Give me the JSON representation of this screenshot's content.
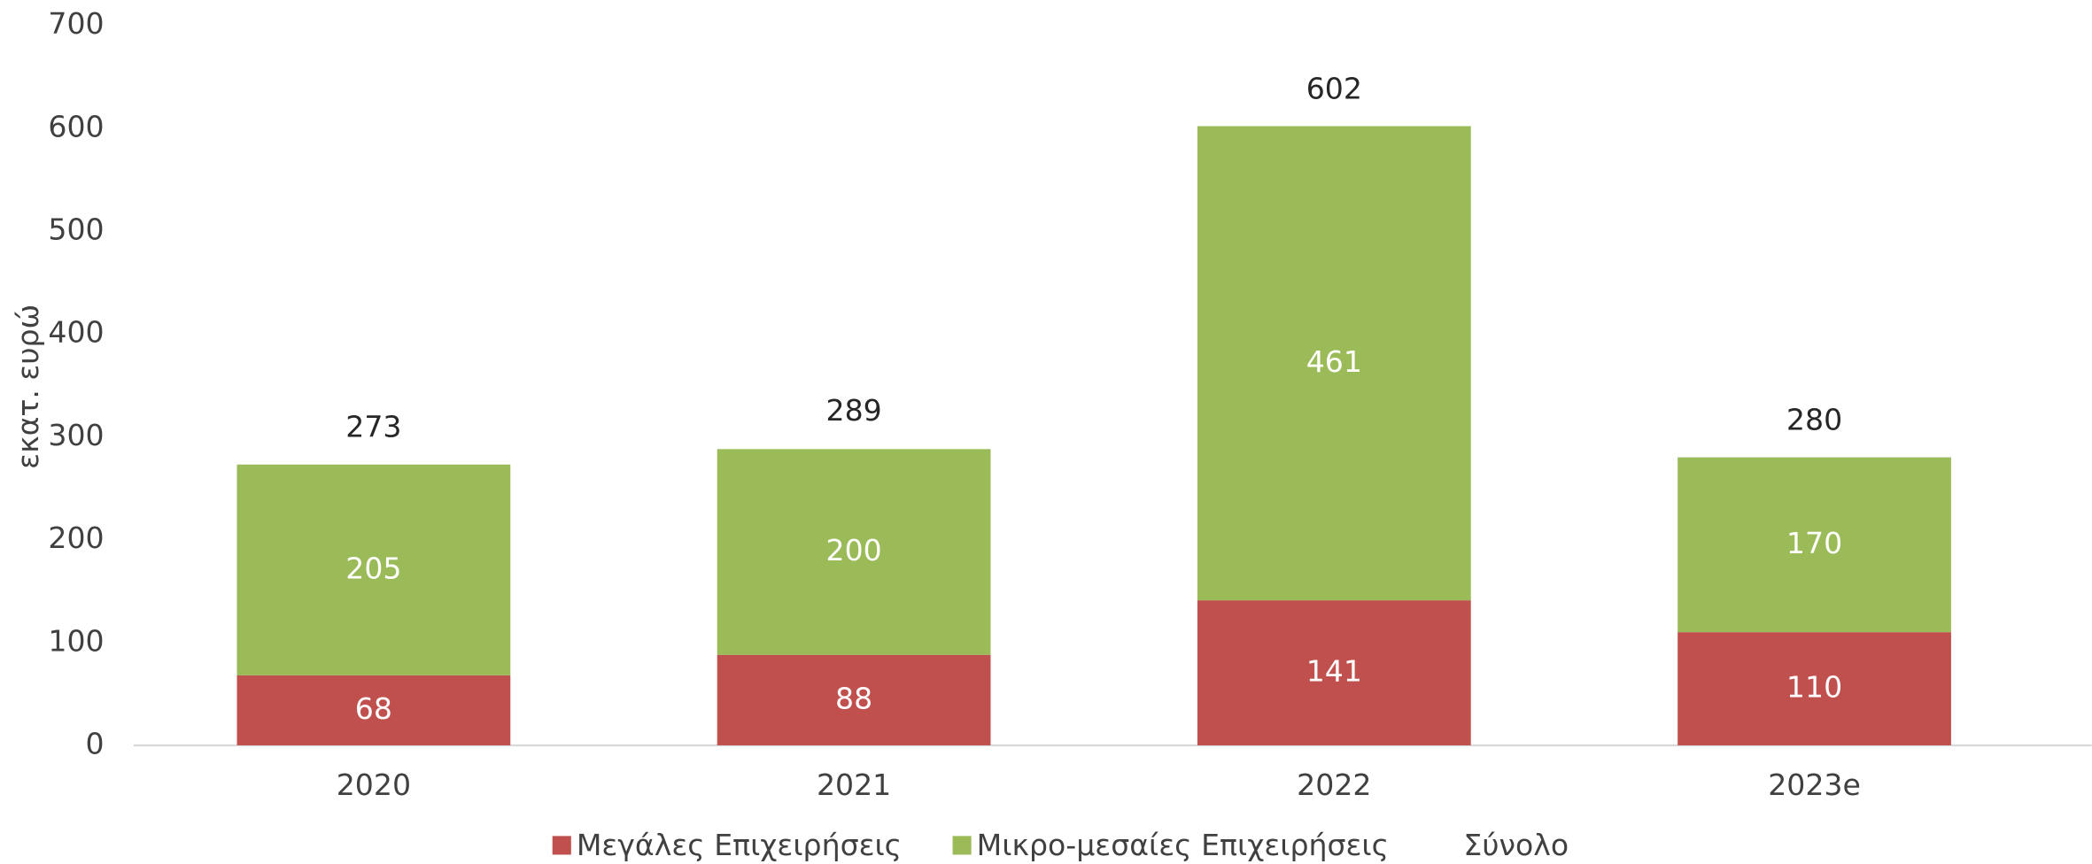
{
  "chart_data": {
    "type": "stacked_bar",
    "y_label": "εκατ. ευρώ",
    "categories": [
      "2020",
      "2021",
      "2022",
      "2023e"
    ],
    "series": [
      {
        "name": "Μεγάλες Επιχειρήσεις",
        "color": "#c0504d",
        "values": [
          68,
          88,
          141,
          110
        ]
      },
      {
        "name": "Μικρο-μεσαίες Επιχειρήσεις",
        "color": "#9bbb59",
        "values": [
          205,
          200,
          461,
          170
        ]
      }
    ],
    "totals": {
      "name": "Σύνολο",
      "values": [
        273,
        289,
        602,
        280
      ]
    },
    "ylim": [
      0,
      700
    ],
    "yticks": [
      0,
      100,
      200,
      300,
      400,
      500,
      600,
      700
    ],
    "grid": false
  }
}
